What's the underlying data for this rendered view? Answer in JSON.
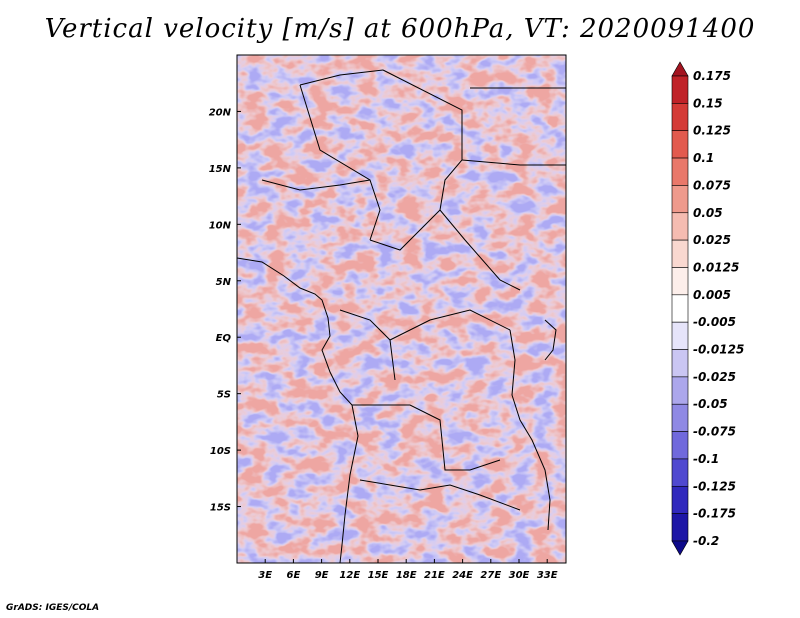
{
  "title": "Vertical velocity [m/s] at 600hPa, VT: 2020091400",
  "footer": "GrADS: IGES/COLA",
  "map": {
    "lon_range": [
      0,
      35
    ],
    "lat_range": [
      -20,
      25
    ],
    "lat_ticks": [
      {
        "label": "20N",
        "value": 20
      },
      {
        "label": "15N",
        "value": 15
      },
      {
        "label": "10N",
        "value": 10
      },
      {
        "label": "5N",
        "value": 5
      },
      {
        "label": "EQ",
        "value": 0
      },
      {
        "label": "5S",
        "value": -5
      },
      {
        "label": "10S",
        "value": -10
      },
      {
        "label": "15S",
        "value": -15
      }
    ],
    "lon_ticks": [
      {
        "label": "3E",
        "value": 3
      },
      {
        "label": "6E",
        "value": 6
      },
      {
        "label": "9E",
        "value": 9
      },
      {
        "label": "12E",
        "value": 12
      },
      {
        "label": "15E",
        "value": 15
      },
      {
        "label": "18E",
        "value": 18
      },
      {
        "label": "21E",
        "value": 21
      },
      {
        "label": "24E",
        "value": 24
      },
      {
        "label": "27E",
        "value": 27
      },
      {
        "label": "30E",
        "value": 30
      },
      {
        "label": "33E",
        "value": 33
      }
    ]
  },
  "colorbar": {
    "labels": [
      "0.175",
      "0.15",
      "0.125",
      "0.1",
      "0.075",
      "0.05",
      "0.025",
      "0.0125",
      "0.005",
      "-0.005",
      "-0.0125",
      "-0.025",
      "-0.05",
      "-0.075",
      "-0.1",
      "-0.125",
      "-0.175",
      "-0.2"
    ],
    "colors": [
      "#a31420",
      "#c02228",
      "#d43a36",
      "#e25a4e",
      "#e9786a",
      "#ef9a8c",
      "#f5bcb1",
      "#f9d8d0",
      "#fdefeb",
      "#ffffff",
      "#e6e4fa",
      "#cac6f3",
      "#aca7ec",
      "#8f89e4",
      "#7069dc",
      "#5049d0",
      "#3129bd",
      "#1e17a6",
      "#0e0a8a"
    ]
  }
}
